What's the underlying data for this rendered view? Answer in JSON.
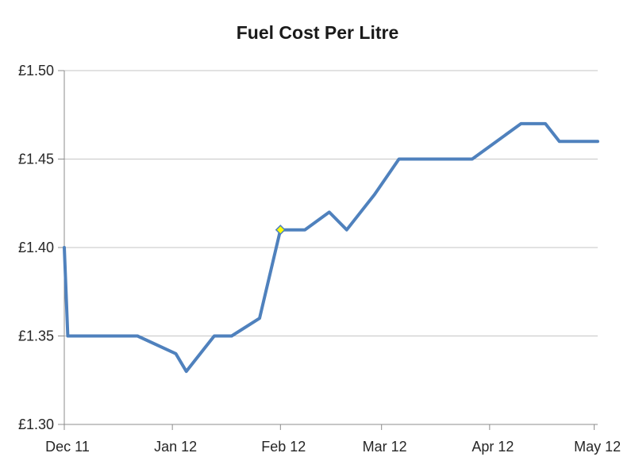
{
  "chart_data": {
    "type": "line",
    "title": "Fuel Cost Per Litre",
    "legend": "none",
    "grid": "horizontal",
    "x_axis": {
      "type": "date",
      "tick_labels": [
        "Dec 11",
        "Jan 12",
        "Feb 12",
        "Mar 12",
        "Apr 12",
        "May 12"
      ],
      "tick_days": [
        0,
        31,
        62,
        91,
        122,
        152
      ],
      "range_days": [
        0,
        153
      ]
    },
    "y_axis": {
      "tick_labels": [
        "£1.30",
        "£1.35",
        "£1.40",
        "£1.45",
        "£1.50"
      ],
      "tick_values": [
        1.3,
        1.35,
        1.4,
        1.45,
        1.5
      ],
      "range": [
        1.3,
        1.5
      ],
      "currency_prefix": "£"
    },
    "series": [
      {
        "name": "Fuel cost per litre",
        "color": "#4F81BD",
        "points": [
          {
            "day": 0,
            "date": "1 Dec 11",
            "value": 1.4
          },
          {
            "day": 1,
            "date": "2 Dec 11",
            "value": 1.35
          },
          {
            "day": 21,
            "date": "22 Dec 11",
            "value": 1.35
          },
          {
            "day": 32,
            "date": "2 Jan 12",
            "value": 1.34
          },
          {
            "day": 35,
            "date": "5 Jan 12",
            "value": 1.33
          },
          {
            "day": 43,
            "date": "13 Jan 12",
            "value": 1.35
          },
          {
            "day": 48,
            "date": "18 Jan 12",
            "value": 1.35
          },
          {
            "day": 56,
            "date": "26 Jan 12",
            "value": 1.36
          },
          {
            "day": 62,
            "date": "1 Feb 12",
            "value": 1.41,
            "marker": "yellow-diamond"
          },
          {
            "day": 69,
            "date": "8 Feb 12",
            "value": 1.41
          },
          {
            "day": 76,
            "date": "15 Feb 12",
            "value": 1.42
          },
          {
            "day": 81,
            "date": "20 Feb 12",
            "value": 1.41
          },
          {
            "day": 89,
            "date": "28 Feb 12",
            "value": 1.43
          },
          {
            "day": 96,
            "date": "6 Mar 12",
            "value": 1.45
          },
          {
            "day": 117,
            "date": "27 Mar 12",
            "value": 1.45
          },
          {
            "day": 124,
            "date": "3 Apr 12",
            "value": 1.46
          },
          {
            "day": 131,
            "date": "10 Apr 12",
            "value": 1.47
          },
          {
            "day": 138,
            "date": "17 Apr 12",
            "value": 1.47
          },
          {
            "day": 142,
            "date": "21 Apr 12",
            "value": 1.46
          },
          {
            "day": 153,
            "date": "2 May 12",
            "value": 1.46
          }
        ]
      }
    ],
    "marker_style": {
      "fill": "#FFFF00",
      "stroke": "#4F81BD"
    },
    "colors": {
      "line": "#4F81BD",
      "gridline": "#C6C6C6",
      "axis": "#8C8C8C",
      "tick_label": "#262626",
      "title": "#1A1A1A",
      "background": "#FFFFFF"
    }
  }
}
